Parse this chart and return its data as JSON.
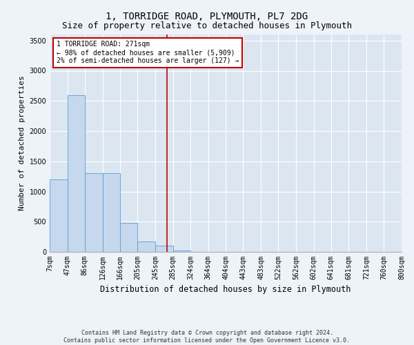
{
  "title": "1, TORRIDGE ROAD, PLYMOUTH, PL7 2DG",
  "subtitle": "Size of property relative to detached houses in Plymouth",
  "xlabel": "Distribution of detached houses by size in Plymouth",
  "ylabel": "Number of detached properties",
  "footer_line1": "Contains HM Land Registry data © Crown copyright and database right 2024.",
  "footer_line2": "Contains public sector information licensed under the Open Government Licence v3.0.",
  "annotation_line1": "1 TORRIDGE ROAD: 271sqm",
  "annotation_line2": "← 98% of detached houses are smaller (5,909)",
  "annotation_line3": "2% of semi-detached houses are larger (127) →",
  "property_size": 271,
  "bin_edges": [
    7,
    47,
    86,
    126,
    166,
    205,
    245,
    285,
    324,
    364,
    404,
    443,
    483,
    522,
    562,
    602,
    641,
    681,
    721,
    760,
    800
  ],
  "bar_heights": [
    1200,
    2600,
    1300,
    1300,
    480,
    170,
    100,
    25,
    5,
    0,
    0,
    0,
    0,
    0,
    0,
    0,
    0,
    0,
    0,
    0
  ],
  "bar_color": "#c5d8ed",
  "bar_edge_color": "#5b9bd5",
  "vline_color": "#c00000",
  "vline_x": 271,
  "annotation_box_color": "#c00000",
  "ylim": [
    0,
    3600
  ],
  "yticks": [
    0,
    500,
    1000,
    1500,
    2000,
    2500,
    3000,
    3500
  ],
  "background_color": "#eef2f9",
  "plot_background": "#dce6f1",
  "title_fontsize": 10,
  "subtitle_fontsize": 9,
  "tick_fontsize": 7,
  "ylabel_fontsize": 8,
  "xlabel_fontsize": 8.5,
  "footer_fontsize": 6,
  "annotation_fontsize": 7
}
